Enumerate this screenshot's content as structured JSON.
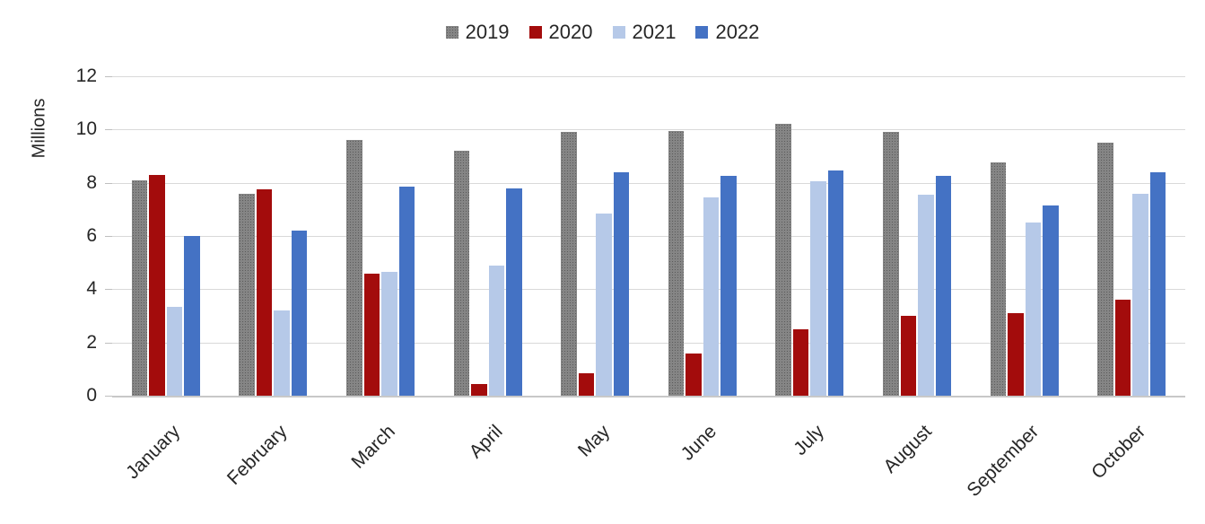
{
  "legend": {
    "items": [
      {
        "label": "2019",
        "color": "#7f7f7f",
        "pattern": true
      },
      {
        "label": "2020",
        "color": "#a30c0c",
        "pattern": false
      },
      {
        "label": "2021",
        "color": "#b6c9e8",
        "pattern": false
      },
      {
        "label": "2022",
        "color": "#4472c4",
        "pattern": false
      }
    ]
  },
  "chart_data": {
    "type": "bar",
    "title": "",
    "xlabel": "",
    "ylabel": "Millions",
    "ylim": [
      0,
      12
    ],
    "yticks": [
      0,
      2,
      4,
      6,
      8,
      10,
      12
    ],
    "grid": true,
    "legend_position": "top-center",
    "categories": [
      "January",
      "February",
      "March",
      "April",
      "May",
      "June",
      "July",
      "August",
      "September",
      "October"
    ],
    "series": [
      {
        "name": "2019",
        "color": "#7f7f7f",
        "pattern": true,
        "values": [
          8.1,
          7.6,
          9.6,
          9.2,
          9.9,
          9.95,
          10.2,
          9.9,
          8.75,
          9.5
        ]
      },
      {
        "name": "2020",
        "color": "#a30c0c",
        "pattern": false,
        "values": [
          8.3,
          7.75,
          4.6,
          0.45,
          0.85,
          1.6,
          2.5,
          3.0,
          3.1,
          3.6
        ]
      },
      {
        "name": "2021",
        "color": "#b6c9e8",
        "pattern": false,
        "values": [
          3.35,
          3.2,
          4.65,
          4.9,
          6.85,
          7.45,
          8.05,
          7.55,
          6.5,
          7.6
        ]
      },
      {
        "name": "2022",
        "color": "#4472c4",
        "pattern": false,
        "values": [
          6.0,
          6.2,
          7.85,
          7.8,
          8.4,
          8.25,
          8.45,
          8.25,
          7.15,
          8.4
        ]
      }
    ],
    "colors": {
      "grid": "#d9d9d9",
      "axis_line": "#c8c8c8",
      "tick": "#bfbfbf",
      "text": "#262626"
    }
  }
}
